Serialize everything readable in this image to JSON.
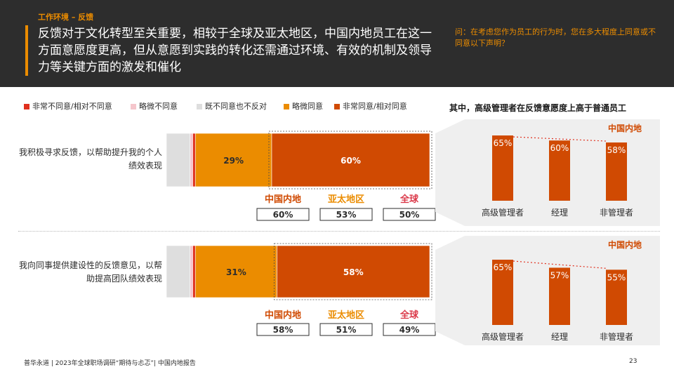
{
  "header": {
    "section": "工作环境 – 反馈",
    "headline": "反馈对于文化转型至关重要，相较于全球及亚太地区，中国内地员工在这一方面意愿度更高，但从意愿到实践的转化还需通过环境、有效的机制及领导力等关键方面的激发和催化",
    "question": "问：在考虑您作为员工的行为时，您在多大程度上同意或不同意以下声明？"
  },
  "legend": [
    {
      "label": "非常不同意/相对不同意",
      "color": "#e0301e"
    },
    {
      "label": "略微不同意",
      "color": "#f5c6cc"
    },
    {
      "label": "既不同意也不反对",
      "color": "#dedede"
    },
    {
      "label": "略微同意",
      "color": "#eb8c00"
    },
    {
      "label": "非常同意/相对同意",
      "color": "#d04a02"
    }
  ],
  "side_title": "其中，高级管理者在反馈意愿度上高于普通员工",
  "footer": "普华永道 | 2023年全球职场调研“期待与忐忑”| 中国内地报告",
  "page_number": "23",
  "chart_data": [
    {
      "type": "bar",
      "orientation": "horizontal-stacked",
      "question": "我积极寻求反馈，以帮助提升我的个人绩效表现",
      "series": [
        {
          "name": "非常不同意/相对不同意",
          "value": 1
        },
        {
          "name": "略微不同意",
          "value": 1
        },
        {
          "name": "既不同意也不反对",
          "value": 9
        },
        {
          "name": "略微同意",
          "value": 29
        },
        {
          "name": "非常同意/相对同意",
          "value": 60
        }
      ],
      "region_comparison": [
        {
          "region": "中国内地",
          "value": "60%",
          "color": "#d04a02"
        },
        {
          "region": "亚太地区",
          "value": "53%",
          "color": "#eb8c00"
        },
        {
          "region": "全球",
          "value": "50%",
          "color": "#db3a4a"
        }
      ]
    },
    {
      "type": "bar",
      "orientation": "horizontal-stacked",
      "question": "我向同事提供建设性的反馈意见，以帮助提高团队绩效表现",
      "series": [
        {
          "name": "非常不同意/相对不同意",
          "value": 1
        },
        {
          "name": "略微不同意",
          "value": 1
        },
        {
          "name": "既不同意也不反对",
          "value": 9
        },
        {
          "name": "略微同意",
          "value": 31
        },
        {
          "name": "非常同意/相对同意",
          "value": 58
        }
      ],
      "region_comparison": [
        {
          "region": "中国内地",
          "value": "58%",
          "color": "#d04a02"
        },
        {
          "region": "亚太地区",
          "value": "51%",
          "color": "#eb8c00"
        },
        {
          "region": "全球",
          "value": "49%",
          "color": "#db3a4a"
        }
      ]
    },
    {
      "type": "bar",
      "title": "中国内地",
      "categories": [
        "高级管理者",
        "经理",
        "非管理者"
      ],
      "values": [
        65,
        60,
        58
      ],
      "ylim": [
        0,
        70
      ],
      "trend_line": "dotted"
    },
    {
      "type": "bar",
      "title": "中国内地",
      "categories": [
        "高级管理者",
        "经理",
        "非管理者"
      ],
      "values": [
        65,
        57,
        55
      ],
      "ylim": [
        0,
        70
      ],
      "trend_line": "dotted"
    }
  ]
}
